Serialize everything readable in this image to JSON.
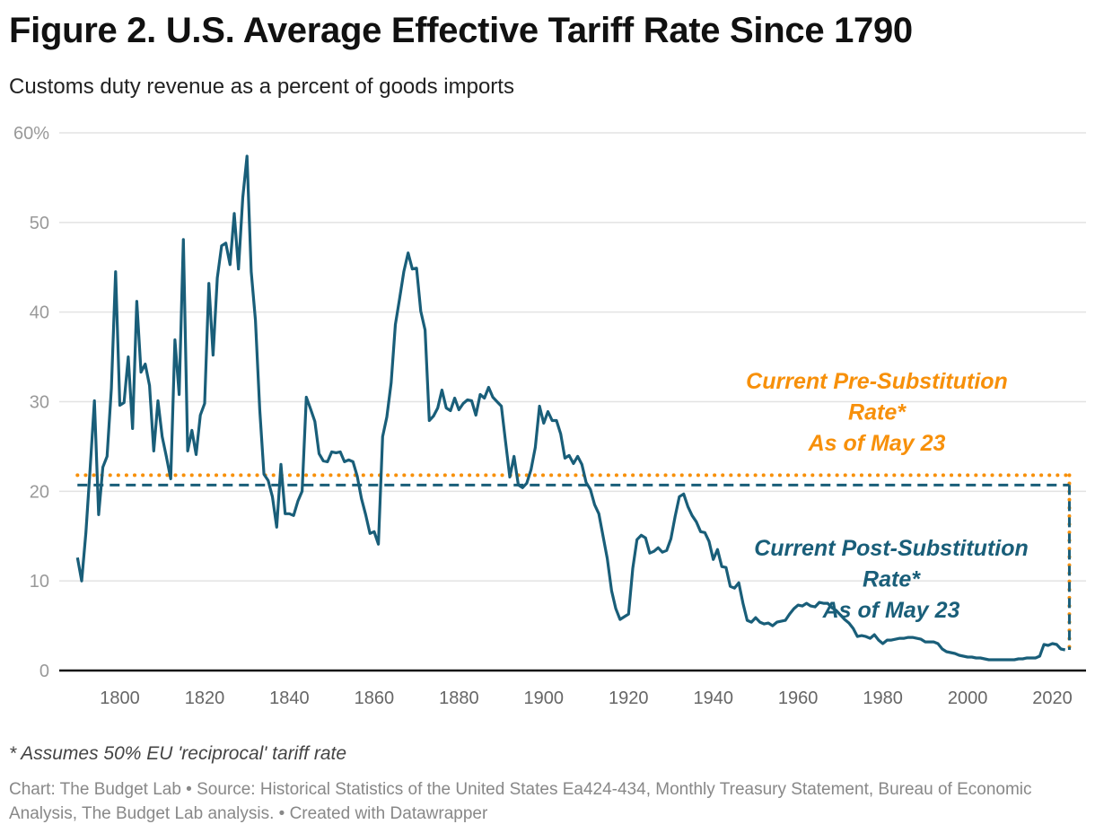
{
  "title": "Figure 2. U.S. Average Effective Tariff Rate Since 1790",
  "subtitle": "Customs duty revenue as a percent of goods imports",
  "footnote": "* Assumes 50% EU 'reciprocal' tariff rate",
  "source": "Chart: The Budget Lab • Source: Historical Statistics of the United States Ea424-434, Monthly Treasury Statement, Bureau of Economic Analysis, The Budget Lab analysis. • Created with Datawrapper",
  "chart_data": {
    "type": "line",
    "title": "Figure 2. U.S. Average Effective Tariff Rate Since 1790",
    "subtitle": "Customs duty revenue as a percent of goods imports",
    "xlabel": "",
    "ylabel": "",
    "xlim": [
      1786,
      2027
    ],
    "ylim": [
      0,
      60
    ],
    "x_ticks": [
      1800,
      1820,
      1840,
      1860,
      1880,
      1900,
      1920,
      1940,
      1960,
      1980,
      2000,
      2020
    ],
    "y_ticks": [
      0,
      10,
      20,
      30,
      40,
      50,
      60
    ],
    "y_tick_labels": [
      "0",
      "10",
      "20",
      "30",
      "40",
      "50",
      "60%"
    ],
    "grid": "horizontal",
    "colors": {
      "series": "#195e79",
      "pre_substitution": "#f7900a",
      "post_substitution": "#195e79",
      "axis": "#111111",
      "grid": "#e3e3e3"
    },
    "series": [
      {
        "points": [
          [
            1790,
            12.6
          ],
          [
            1791,
            10.0
          ],
          [
            1792,
            15.4
          ],
          [
            1793,
            22.5
          ],
          [
            1794,
            30.1
          ],
          [
            1795,
            17.4
          ],
          [
            1796,
            22.7
          ],
          [
            1797,
            23.9
          ],
          [
            1798,
            31.5
          ],
          [
            1799,
            44.5
          ],
          [
            1800,
            29.6
          ],
          [
            1801,
            29.9
          ],
          [
            1802,
            35.0
          ],
          [
            1803,
            27.0
          ],
          [
            1804,
            41.2
          ],
          [
            1805,
            33.3
          ],
          [
            1806,
            34.2
          ],
          [
            1807,
            31.8
          ],
          [
            1808,
            24.5
          ],
          [
            1809,
            30.1
          ],
          [
            1810,
            26.1
          ],
          [
            1811,
            23.8
          ],
          [
            1812,
            21.4
          ],
          [
            1813,
            36.9
          ],
          [
            1814,
            30.8
          ],
          [
            1815,
            48.1
          ],
          [
            1816,
            24.5
          ],
          [
            1817,
            26.8
          ],
          [
            1818,
            24.1
          ],
          [
            1819,
            28.5
          ],
          [
            1820,
            29.8
          ],
          [
            1821,
            43.2
          ],
          [
            1822,
            35.2
          ],
          [
            1823,
            43.8
          ],
          [
            1824,
            47.4
          ],
          [
            1825,
            47.7
          ],
          [
            1826,
            45.3
          ],
          [
            1827,
            51.0
          ],
          [
            1828,
            44.8
          ],
          [
            1829,
            52.8
          ],
          [
            1830,
            57.4
          ],
          [
            1831,
            44.5
          ],
          [
            1832,
            39.1
          ],
          [
            1833,
            29.1
          ],
          [
            1834,
            21.9
          ],
          [
            1835,
            21.2
          ],
          [
            1836,
            19.4
          ],
          [
            1837,
            16.0
          ],
          [
            1838,
            23.0
          ],
          [
            1839,
            17.5
          ],
          [
            1840,
            17.5
          ],
          [
            1841,
            17.3
          ],
          [
            1842,
            18.9
          ],
          [
            1843,
            20.0
          ],
          [
            1844,
            30.5
          ],
          [
            1845,
            29.2
          ],
          [
            1846,
            27.8
          ],
          [
            1847,
            24.2
          ],
          [
            1848,
            23.4
          ],
          [
            1849,
            23.3
          ],
          [
            1850,
            24.4
          ],
          [
            1851,
            24.3
          ],
          [
            1852,
            24.4
          ],
          [
            1853,
            23.3
          ],
          [
            1854,
            23.5
          ],
          [
            1855,
            23.3
          ],
          [
            1856,
            21.7
          ],
          [
            1857,
            19.2
          ],
          [
            1858,
            17.4
          ],
          [
            1859,
            15.3
          ],
          [
            1860,
            15.5
          ],
          [
            1861,
            14.1
          ],
          [
            1862,
            26.1
          ],
          [
            1863,
            28.3
          ],
          [
            1864,
            32.1
          ],
          [
            1865,
            38.6
          ],
          [
            1866,
            41.5
          ],
          [
            1867,
            44.5
          ],
          [
            1868,
            46.6
          ],
          [
            1869,
            44.8
          ],
          [
            1870,
            44.9
          ],
          [
            1871,
            40.1
          ],
          [
            1872,
            38.0
          ],
          [
            1873,
            27.9
          ],
          [
            1874,
            28.4
          ],
          [
            1875,
            29.3
          ],
          [
            1876,
            31.3
          ],
          [
            1877,
            29.3
          ],
          [
            1878,
            29.0
          ],
          [
            1879,
            30.4
          ],
          [
            1880,
            29.1
          ],
          [
            1881,
            29.8
          ],
          [
            1882,
            30.2
          ],
          [
            1883,
            30.1
          ],
          [
            1884,
            28.5
          ],
          [
            1885,
            30.8
          ],
          [
            1886,
            30.4
          ],
          [
            1887,
            31.6
          ],
          [
            1888,
            30.5
          ],
          [
            1889,
            30.0
          ],
          [
            1890,
            29.5
          ],
          [
            1891,
            25.5
          ],
          [
            1892,
            21.6
          ],
          [
            1893,
            23.9
          ],
          [
            1894,
            20.7
          ],
          [
            1895,
            20.4
          ],
          [
            1896,
            20.9
          ],
          [
            1897,
            22.4
          ],
          [
            1898,
            24.9
          ],
          [
            1899,
            29.5
          ],
          [
            1900,
            27.6
          ],
          [
            1901,
            28.9
          ],
          [
            1902,
            27.9
          ],
          [
            1903,
            27.9
          ],
          [
            1904,
            26.4
          ],
          [
            1905,
            23.7
          ],
          [
            1906,
            24.0
          ],
          [
            1907,
            23.1
          ],
          [
            1908,
            23.9
          ],
          [
            1909,
            23.0
          ],
          [
            1910,
            21.0
          ],
          [
            1911,
            20.2
          ],
          [
            1912,
            18.5
          ],
          [
            1913,
            17.5
          ],
          [
            1914,
            15.0
          ],
          [
            1915,
            12.5
          ],
          [
            1916,
            8.9
          ],
          [
            1917,
            6.9
          ],
          [
            1918,
            5.7
          ],
          [
            1919,
            6.0
          ],
          [
            1920,
            6.3
          ],
          [
            1921,
            11.4
          ],
          [
            1922,
            14.6
          ],
          [
            1923,
            15.1
          ],
          [
            1924,
            14.8
          ],
          [
            1925,
            13.1
          ],
          [
            1926,
            13.3
          ],
          [
            1927,
            13.7
          ],
          [
            1928,
            13.2
          ],
          [
            1929,
            13.4
          ],
          [
            1930,
            14.7
          ],
          [
            1931,
            17.2
          ],
          [
            1932,
            19.4
          ],
          [
            1933,
            19.7
          ],
          [
            1934,
            18.3
          ],
          [
            1935,
            17.3
          ],
          [
            1936,
            16.6
          ],
          [
            1937,
            15.5
          ],
          [
            1938,
            15.4
          ],
          [
            1939,
            14.4
          ],
          [
            1940,
            12.4
          ],
          [
            1941,
            13.5
          ],
          [
            1942,
            11.6
          ],
          [
            1943,
            11.5
          ],
          [
            1944,
            9.4
          ],
          [
            1945,
            9.2
          ],
          [
            1946,
            9.8
          ],
          [
            1947,
            7.5
          ],
          [
            1948,
            5.6
          ],
          [
            1949,
            5.4
          ],
          [
            1950,
            5.9
          ],
          [
            1951,
            5.4
          ],
          [
            1952,
            5.2
          ],
          [
            1953,
            5.3
          ],
          [
            1954,
            5.0
          ],
          [
            1955,
            5.4
          ],
          [
            1956,
            5.5
          ],
          [
            1957,
            5.6
          ],
          [
            1958,
            6.3
          ],
          [
            1959,
            6.9
          ],
          [
            1960,
            7.3
          ],
          [
            1961,
            7.2
          ],
          [
            1962,
            7.5
          ],
          [
            1963,
            7.2
          ],
          [
            1964,
            7.1
          ],
          [
            1965,
            7.6
          ],
          [
            1966,
            7.5
          ],
          [
            1967,
            7.5
          ],
          [
            1968,
            7.0
          ],
          [
            1969,
            6.7
          ],
          [
            1970,
            6.2
          ],
          [
            1971,
            5.7
          ],
          [
            1972,
            5.3
          ],
          [
            1973,
            4.7
          ],
          [
            1974,
            3.8
          ],
          [
            1975,
            3.9
          ],
          [
            1976,
            3.8
          ],
          [
            1977,
            3.6
          ],
          [
            1978,
            4.0
          ],
          [
            1979,
            3.4
          ],
          [
            1980,
            3.0
          ],
          [
            1981,
            3.4
          ],
          [
            1982,
            3.4
          ],
          [
            1983,
            3.5
          ],
          [
            1984,
            3.6
          ],
          [
            1985,
            3.6
          ],
          [
            1986,
            3.7
          ],
          [
            1987,
            3.7
          ],
          [
            1988,
            3.6
          ],
          [
            1989,
            3.5
          ],
          [
            1990,
            3.2
          ],
          [
            1991,
            3.2
          ],
          [
            1992,
            3.2
          ],
          [
            1993,
            3.0
          ],
          [
            1994,
            2.4
          ],
          [
            1995,
            2.1
          ],
          [
            1996,
            2.0
          ],
          [
            1997,
            1.9
          ],
          [
            1998,
            1.7
          ],
          [
            1999,
            1.6
          ],
          [
            2000,
            1.5
          ],
          [
            2001,
            1.5
          ],
          [
            2002,
            1.4
          ],
          [
            2003,
            1.4
          ],
          [
            2004,
            1.3
          ],
          [
            2005,
            1.2
          ],
          [
            2006,
            1.2
          ],
          [
            2007,
            1.2
          ],
          [
            2008,
            1.2
          ],
          [
            2009,
            1.2
          ],
          [
            2010,
            1.2
          ],
          [
            2011,
            1.2
          ],
          [
            2012,
            1.3
          ],
          [
            2013,
            1.3
          ],
          [
            2014,
            1.4
          ],
          [
            2015,
            1.4
          ],
          [
            2016,
            1.4
          ],
          [
            2017,
            1.6
          ],
          [
            2018,
            2.9
          ],
          [
            2019,
            2.8
          ],
          [
            2020,
            3.0
          ],
          [
            2021,
            2.9
          ],
          [
            2022,
            2.4
          ],
          [
            2023,
            2.3
          ]
        ]
      }
    ],
    "reference_lines": [
      {
        "key": "pre",
        "value": 21.8,
        "x_range": [
          1790,
          2024
        ],
        "style": "dotted",
        "label_lines": [
          "Current Pre-Substitution",
          "Rate*",
          "As of May 23"
        ]
      },
      {
        "key": "post",
        "value": 20.7,
        "x_range": [
          1790,
          2024
        ],
        "style": "dashed",
        "label_lines": [
          "Current Post-Substitution",
          "Rate*",
          "As of May 23"
        ]
      }
    ]
  }
}
